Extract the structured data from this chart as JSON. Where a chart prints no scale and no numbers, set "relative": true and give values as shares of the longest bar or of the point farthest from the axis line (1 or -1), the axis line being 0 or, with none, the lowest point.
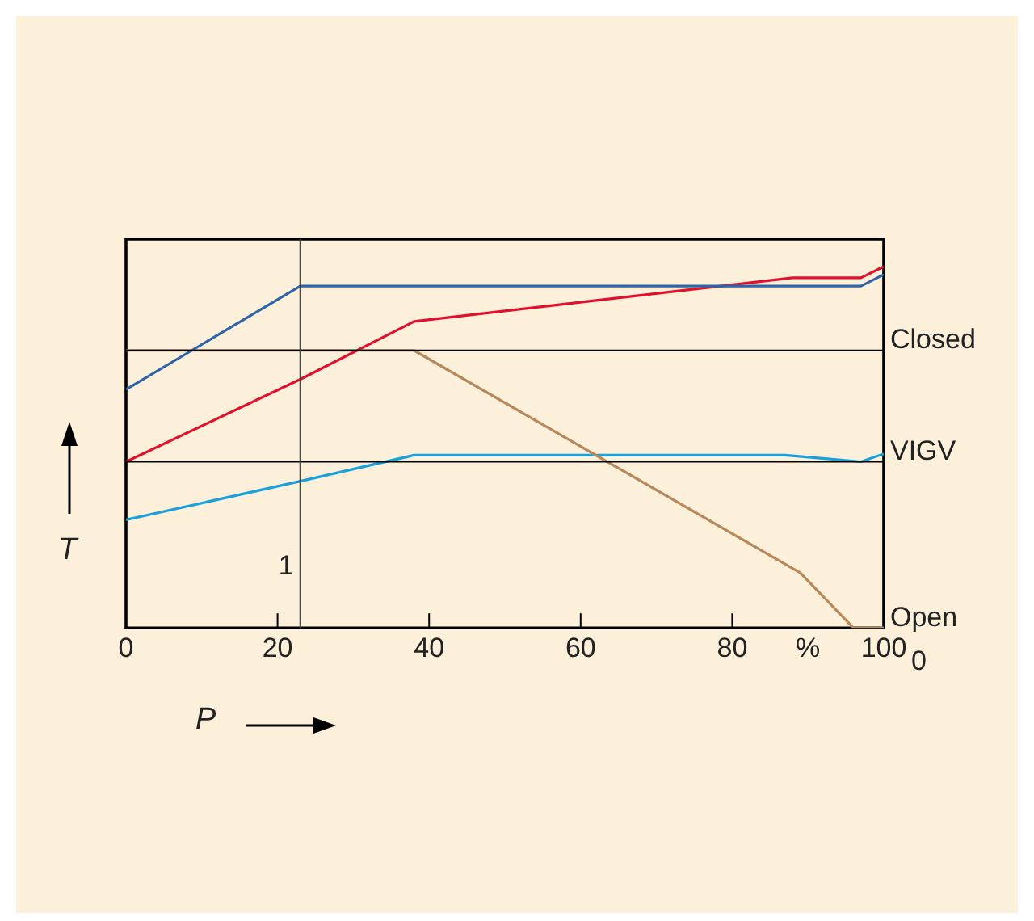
{
  "chart_data": {
    "type": "line",
    "relative": true,
    "xlabel": "P",
    "ylabel": "T",
    "legend": false,
    "grid": false,
    "marker": "none",
    "line_style": "solid",
    "xlim": [
      0,
      100
    ],
    "xticks": [
      0,
      20,
      40,
      60,
      80,
      {
        "value": 90,
        "label": "%"
      },
      100
    ],
    "annotations": [
      "Open",
      {
        "text": "1",
        "x": 23
      },
      "0"
    ],
    "ref_lines": [
      {
        "axis": "y",
        "value": 0.768,
        "label": "Closed",
        "color": "#000000"
      },
      {
        "axis": "y",
        "value": 0.46,
        "label": "VIGV",
        "color": "#000000"
      },
      {
        "axis": "x",
        "value": 23,
        "color": "#444444"
      }
    ],
    "series": [
      {
        "color": "#2e64a8",
        "x": [
          0,
          23,
          97,
          100
        ],
        "values": [
          0.66,
          0.946,
          0.946,
          0.978
        ]
      },
      {
        "color": "#e0102f",
        "x": [
          0,
          23,
          38,
          88,
          97,
          100
        ],
        "values": [
          0.46,
          0.688,
          0.848,
          0.969,
          0.969,
          1
        ]
      },
      {
        "color": "#b8875a",
        "x": [
          0,
          38,
          89,
          96,
          100
        ],
        "values": [
          0.768,
          0.768,
          0.152,
          0,
          0
        ]
      },
      {
        "color": "#1aa0dc",
        "x": [
          0,
          23,
          38,
          87,
          97,
          100
        ],
        "values": [
          0.299,
          0.406,
          0.478,
          0.478,
          0.46,
          0.482
        ]
      }
    ]
  }
}
